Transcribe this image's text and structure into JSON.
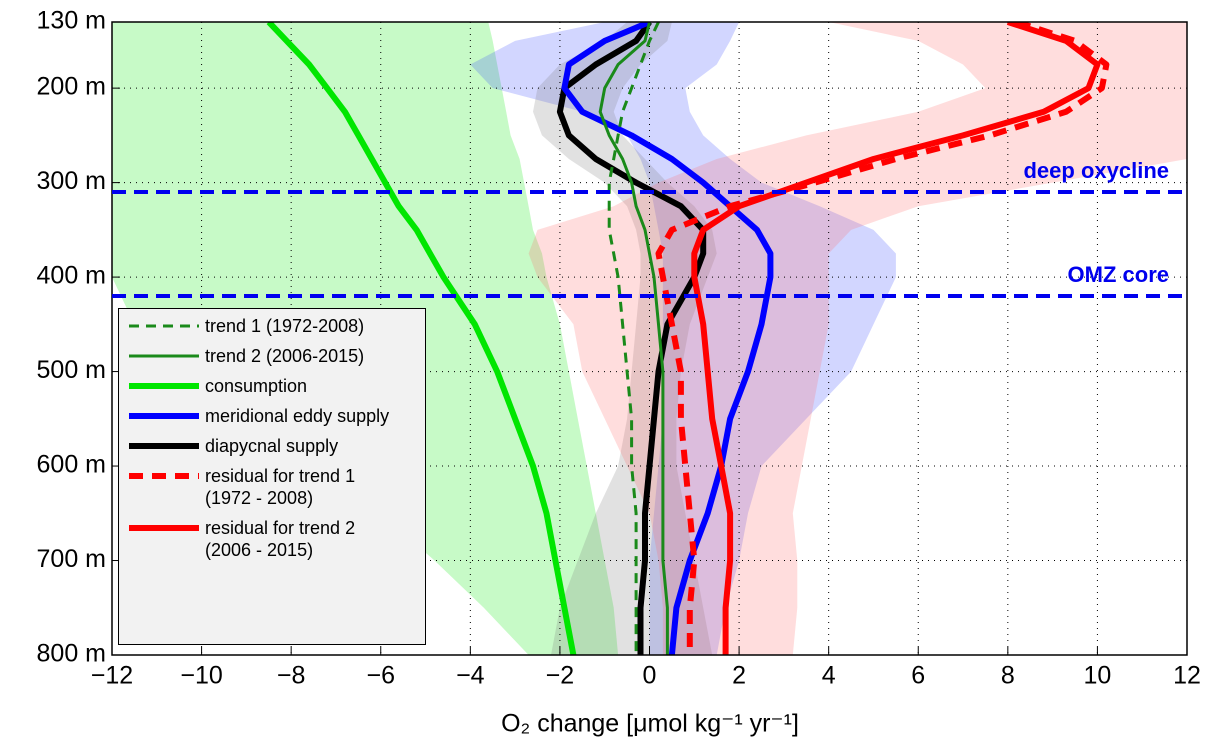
{
  "chart_data": {
    "type": "line",
    "orientation": "vertical-profile",
    "xlabel": "O₂ change [μmol kg⁻¹ yr⁻¹]",
    "xlim": [
      -12,
      12
    ],
    "xticks": [
      {
        "value": -12,
        "label": "−12"
      },
      {
        "value": -10,
        "label": "−10"
      },
      {
        "value": -8,
        "label": "−8"
      },
      {
        "value": -6,
        "label": "−6"
      },
      {
        "value": -4,
        "label": "−4"
      },
      {
        "value": -2,
        "label": "−2"
      },
      0,
      2,
      4,
      6,
      8,
      10,
      12
    ],
    "ylim": [
      130,
      800
    ],
    "y_inverted": true,
    "yticks": [
      {
        "value": 130,
        "label": "130 m"
      },
      {
        "value": 200,
        "label": "200 m"
      },
      {
        "value": 300,
        "label": "300 m"
      },
      {
        "value": 400,
        "label": "400 m"
      },
      {
        "value": 500,
        "label": "500 m"
      },
      {
        "value": 600,
        "label": "600 m"
      },
      {
        "value": 700,
        "label": "700 m"
      },
      {
        "value": 800,
        "label": "800 m"
      }
    ],
    "grid": true,
    "legend": "lower-left",
    "y": [
      130,
      150,
      175,
      200,
      225,
      250,
      275,
      300,
      325,
      350,
      375,
      400,
      450,
      500,
      550,
      600,
      650,
      700,
      750,
      800
    ],
    "reference_lines": [
      {
        "label": "deep oxycline",
        "value": 310,
        "color": "#0000ee"
      },
      {
        "label": "OMZ core",
        "value": 420,
        "color": "#0000ee"
      }
    ],
    "series": [
      {
        "name": "trend 1 (1972-2008)",
        "color": "#1a8a1a",
        "dash": "dashed",
        "width": 3,
        "values": [
          0.2,
          0.0,
          -0.2,
          -0.4,
          -0.6,
          -0.7,
          -0.8,
          -0.9,
          -0.9,
          -0.9,
          -0.8,
          -0.7,
          -0.6,
          -0.5,
          -0.4,
          -0.4,
          -0.3,
          -0.3,
          -0.3,
          -0.3
        ]
      },
      {
        "name": "trend 2 (2006-2015)",
        "color": "#1a8a1a",
        "dash": "solid",
        "width": 3,
        "values": [
          0.0,
          -0.1,
          -0.7,
          -1.0,
          -1.1,
          -0.9,
          -0.6,
          -0.4,
          -0.3,
          -0.1,
          0.0,
          0.1,
          0.2,
          0.3,
          0.3,
          0.3,
          0.3,
          0.3,
          0.4,
          0.4
        ]
      },
      {
        "name": "consumption",
        "color": "#00e600",
        "dash": "solid",
        "width": 6,
        "band_color": "#00e600",
        "values": [
          -8.5,
          -8.1,
          -7.6,
          -7.2,
          -6.8,
          -6.5,
          -6.2,
          -5.9,
          -5.6,
          -5.2,
          -4.9,
          -4.6,
          -3.9,
          -3.4,
          -3.0,
          -2.6,
          -2.3,
          -2.1,
          -1.9,
          -1.7
        ],
        "lower": [
          -13.5,
          -13.3,
          -13.1,
          -13.0,
          -12.8,
          -12.5,
          -12.3,
          -12.0,
          -12.0,
          -12.0,
          -12.0,
          -12.0,
          -11.5,
          -10.5,
          -9.0,
          -7.5,
          -6.0,
          -4.8,
          -3.7,
          -2.7
        ],
        "upper": [
          -3.6,
          -3.5,
          -3.4,
          -3.3,
          -3.2,
          -3.1,
          -2.9,
          -2.8,
          -2.7,
          -2.6,
          -2.4,
          -2.3,
          -2.0,
          -1.8,
          -1.6,
          -1.4,
          -1.2,
          -1.0,
          -0.8,
          -0.7
        ]
      },
      {
        "name": "meridional eddy supply",
        "color": "#0000ff",
        "dash": "solid",
        "width": 6,
        "band_color": "#3344ff",
        "values": [
          0.0,
          -1.0,
          -1.8,
          -1.9,
          -1.5,
          -0.4,
          0.5,
          1.2,
          1.8,
          2.4,
          2.7,
          2.7,
          2.5,
          2.2,
          1.8,
          1.6,
          1.3,
          0.9,
          0.6,
          0.5
        ],
        "lower": [
          -1.0,
          -3.0,
          -4.0,
          -3.5,
          -1.5,
          -0.5,
          -0.2,
          0.0,
          0.1,
          0.2,
          0.3,
          0.3,
          0.3,
          0.3,
          0.3,
          0.2,
          0.1,
          0.0,
          0.0,
          0.0
        ],
        "upper": [
          2.0,
          1.8,
          1.5,
          0.8,
          0.9,
          1.2,
          1.8,
          2.5,
          3.8,
          5.0,
          5.5,
          5.5,
          5.0,
          4.5,
          3.5,
          2.5,
          2.2,
          2.0,
          1.7,
          1.5
        ]
      },
      {
        "name": "diapycnal supply",
        "color": "#000000",
        "dash": "solid",
        "width": 6,
        "band_color": "#777777",
        "values": [
          0.0,
          -0.3,
          -1.2,
          -1.9,
          -2.0,
          -1.8,
          -1.2,
          -0.3,
          0.7,
          1.2,
          1.2,
          1.0,
          0.4,
          0.2,
          0.1,
          0.0,
          -0.1,
          -0.1,
          -0.2,
          -0.2
        ],
        "lower": [
          -0.5,
          -1.0,
          -2.0,
          -2.5,
          -2.6,
          -2.4,
          -1.8,
          -1.0,
          -0.5,
          -0.3,
          -0.2,
          -0.2,
          -0.3,
          -0.4,
          -0.5,
          -0.7,
          -1.2,
          -1.6,
          -2.0,
          -2.2
        ],
        "upper": [
          0.5,
          0.4,
          -0.2,
          -0.6,
          -0.8,
          -0.6,
          -0.1,
          0.4,
          1.0,
          1.4,
          1.5,
          1.3,
          0.9,
          0.7,
          0.6,
          0.6,
          0.8,
          1.0,
          1.2,
          1.4
        ]
      },
      {
        "name": "residual for trend 1 (1972 - 2008)",
        "color": "#ff0000",
        "dash": "dashed",
        "width": 6,
        "values": [
          8.2,
          9.5,
          10.2,
          10.1,
          9.3,
          7.6,
          5.5,
          3.7,
          1.8,
          0.5,
          0.2,
          0.3,
          0.5,
          0.7,
          0.7,
          0.8,
          0.9,
          1.0,
          0.9,
          0.9
        ]
      },
      {
        "name": "residual for trend 2 (2006 - 2015)",
        "color": "#ff0000",
        "dash": "solid",
        "width": 6,
        "band_color": "#ff6666",
        "values": [
          8.0,
          9.3,
          10.0,
          9.8,
          8.8,
          7.0,
          5.0,
          3.5,
          2.0,
          1.2,
          1.0,
          1.0,
          1.2,
          1.3,
          1.4,
          1.6,
          1.8,
          1.8,
          1.7,
          1.7
        ],
        "lower": [
          4.0,
          6.0,
          7.0,
          7.5,
          6.0,
          3.5,
          1.5,
          0.2,
          -0.8,
          -2.5,
          -2.7,
          -2.5,
          -1.7,
          -1.5,
          -1.0,
          -0.5,
          0.0,
          0.2,
          0.3,
          0.3
        ],
        "upper": [
          13.0,
          13.0,
          12.0,
          12.0,
          13.0,
          13.0,
          12.0,
          9.0,
          6.0,
          4.5,
          4.0,
          4.0,
          4.0,
          3.8,
          3.6,
          3.4,
          3.2,
          3.3,
          3.3,
          3.2
        ]
      }
    ]
  }
}
